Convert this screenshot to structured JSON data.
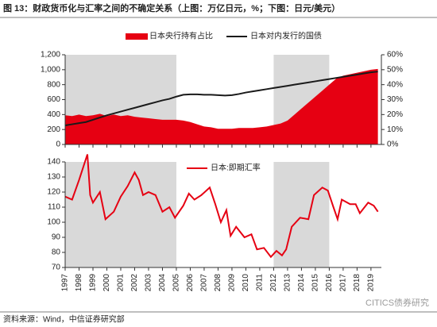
{
  "title": "图 13：财政货币化与汇率之间的不确定关系（上图：万亿日元，%；下图：日元/美元）",
  "source": "资料来源：Wind，中信证券研究部",
  "watermark": "CITICS债券研究",
  "chart_data": [
    {
      "type": "combo",
      "x": [
        1997,
        1997.5,
        1998,
        1998.5,
        1999,
        1999.5,
        2000,
        2000.5,
        2001,
        2001.5,
        2002,
        2002.5,
        2003,
        2003.5,
        2004,
        2004.5,
        2005,
        2005.5,
        2006,
        2006.5,
        2007,
        2007.5,
        2008,
        2008.5,
        2009,
        2009.5,
        2010,
        2010.5,
        2011,
        2011.5,
        2012,
        2012.5,
        2013,
        2013.5,
        2014,
        2014.5,
        2015,
        2015.5,
        2016,
        2016.5,
        2017,
        2017.5,
        2018,
        2018.5,
        2019,
        2019.5
      ],
      "series": [
        {
          "name": "日本央行持有占比",
          "type": "area",
          "axis": "y2",
          "color": "#e60012",
          "values": [
            19.5,
            19,
            20,
            19,
            19.5,
            20.5,
            19,
            20,
            19,
            19.5,
            18.5,
            18,
            17.5,
            17,
            16.5,
            16.5,
            16.5,
            16,
            15,
            13.5,
            12,
            11.5,
            10.5,
            10.5,
            10.5,
            11,
            11,
            11,
            11.5,
            12,
            13,
            14,
            16,
            20,
            24,
            28,
            32,
            36,
            40,
            44,
            46,
            47,
            48,
            49,
            50,
            50.5
          ]
        },
        {
          "name": "日本对内发行的国债",
          "type": "line",
          "color": "#1a1a1a",
          "values": [
            255,
            270,
            285,
            300,
            330,
            360,
            390,
            415,
            440,
            465,
            490,
            515,
            540,
            565,
            590,
            610,
            640,
            665,
            670,
            670,
            665,
            665,
            660,
            655,
            660,
            675,
            695,
            710,
            725,
            740,
            755,
            770,
            785,
            800,
            815,
            830,
            845,
            860,
            875,
            890,
            905,
            920,
            935,
            950,
            965,
            975
          ]
        }
      ],
      "shaded_x": [
        [
          1997,
          2005
        ],
        [
          2012,
          2016
        ]
      ],
      "xlim": [
        1997,
        2019.75
      ],
      "xticks": [
        1997,
        1998,
        1999,
        2000,
        2001,
        2002,
        2003,
        2004,
        2005,
        2006,
        2007,
        2008,
        2009,
        2010,
        2011,
        2012,
        2013,
        2014,
        2015,
        2016,
        2017,
        2018,
        2019
      ],
      "ylim": [
        0,
        1200
      ],
      "yticks": [
        0,
        200,
        400,
        600,
        800,
        {
          "value": 1000,
          "label": "1,000"
        },
        {
          "value": 1200,
          "label": "1,200"
        }
      ],
      "y2lim": [
        0,
        60
      ],
      "y2ticks": [
        {
          "value": 0,
          "label": "0%"
        },
        {
          "value": 10,
          "label": "10%"
        },
        {
          "value": 20,
          "label": "20%"
        },
        {
          "value": 30,
          "label": "30%"
        },
        {
          "value": 40,
          "label": "40%"
        },
        {
          "value": 50,
          "label": "50%"
        },
        {
          "value": 60,
          "label": "60%"
        }
      ]
    },
    {
      "type": "line",
      "x": [
        1997,
        1997.5,
        1998,
        1998.6,
        1998.8,
        1999,
        1999.5,
        1999.9,
        2000.5,
        2001,
        2001.5,
        2002,
        2002.3,
        2002.6,
        2003,
        2003.5,
        2004,
        2004.5,
        2004.9,
        2005.5,
        2005.9,
        2006.3,
        2006.8,
        2007.4,
        2007.8,
        2008.2,
        2008.6,
        2008.9,
        2009.3,
        2009.9,
        2010.4,
        2010.8,
        2011.3,
        2011.8,
        2012.2,
        2012.6,
        2012.9,
        2013.3,
        2013.9,
        2014.5,
        2014.9,
        2015.5,
        2015.9,
        2016.3,
        2016.6,
        2016.9,
        2017.5,
        2017.9,
        2018.2,
        2018.8,
        2019.2,
        2019.5
      ],
      "series": [
        {
          "name": "日本:即期汇率",
          "color": "#e60012",
          "values": [
            117,
            115,
            128,
            145,
            118,
            113,
            120,
            102,
            107,
            117,
            124,
            133,
            128,
            118,
            120,
            118,
            107,
            110,
            103,
            111,
            119,
            115,
            118,
            123,
            112,
            100,
            108,
            91,
            97,
            90,
            92,
            82,
            83,
            77,
            81,
            78,
            82,
            97,
            103,
            102,
            118,
            123,
            121,
            110,
            102,
            115,
            112,
            112,
            106,
            113,
            111,
            107
          ]
        }
      ],
      "shaded_x": [
        [
          1997,
          2005
        ],
        [
          2012,
          2016
        ]
      ],
      "xlim": [
        1997,
        2019.75
      ],
      "xticks": [
        1997,
        1998,
        1999,
        2000,
        2001,
        2002,
        2003,
        2004,
        2005,
        2006,
        2007,
        2008,
        2009,
        2010,
        2011,
        2012,
        2013,
        2014,
        2015,
        2016,
        2017,
        2018,
        2019
      ],
      "ylim": [
        70,
        140
      ],
      "yticks": [
        70,
        80,
        90,
        100,
        110,
        120,
        130,
        140
      ]
    }
  ]
}
